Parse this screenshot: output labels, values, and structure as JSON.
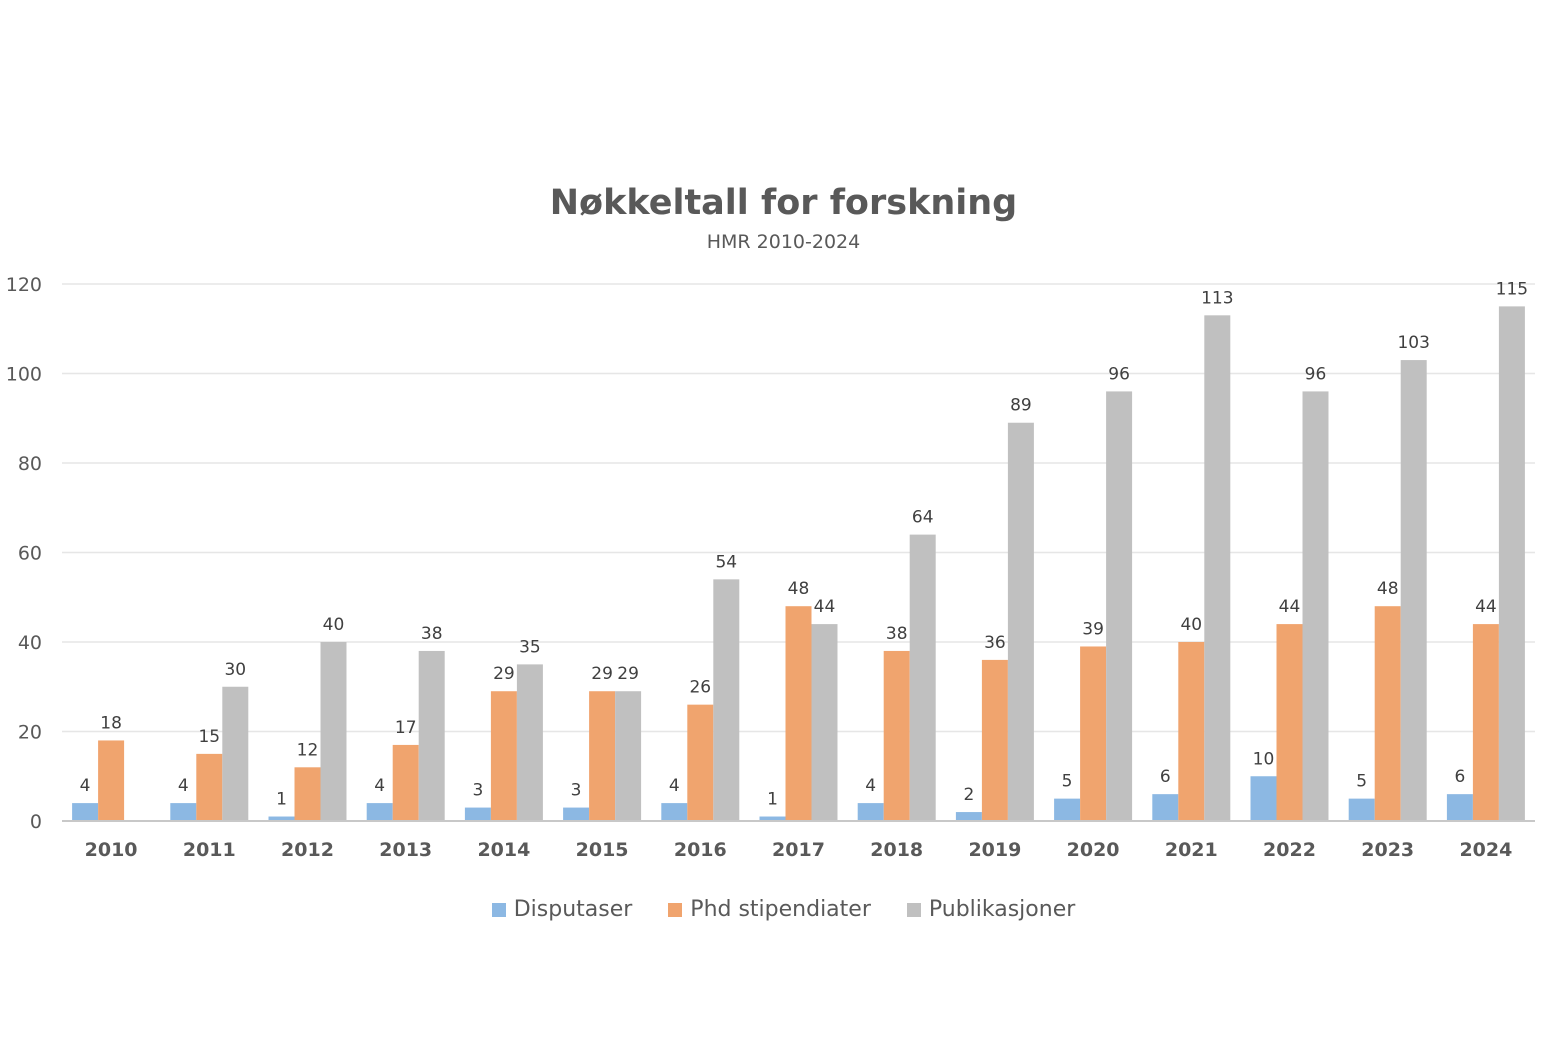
{
  "chart_data": {
    "type": "bar",
    "title": "Nøkkeltall for forskning",
    "subtitle": "HMR 2010-2024",
    "xlabel": "",
    "ylabel": "",
    "ylim": [
      0,
      120
    ],
    "yticks": [
      0,
      20,
      40,
      60,
      80,
      100,
      120
    ],
    "grid": true,
    "legend_position": "bottom",
    "categories": [
      "2010",
      "2011",
      "2012",
      "2013",
      "2014",
      "2015",
      "2016",
      "2017",
      "2018",
      "2019",
      "2020",
      "2021",
      "2022",
      "2023",
      "2024"
    ],
    "series": [
      {
        "name": "Disputaser",
        "color": "#8cb8e3",
        "values": [
          4,
          4,
          1,
          4,
          3,
          3,
          4,
          1,
          4,
          2,
          5,
          6,
          10,
          5,
          6
        ]
      },
      {
        "name": "Phd stipendiater",
        "color": "#f0a46e",
        "values": [
          18,
          15,
          12,
          17,
          29,
          29,
          26,
          48,
          38,
          36,
          39,
          40,
          44,
          48,
          44
        ]
      },
      {
        "name": "Publikasjoner",
        "color": "#c0c0c0",
        "values": [
          null,
          30,
          40,
          38,
          35,
          29,
          54,
          44,
          64,
          89,
          96,
          113,
          96,
          103,
          115
        ]
      }
    ]
  }
}
